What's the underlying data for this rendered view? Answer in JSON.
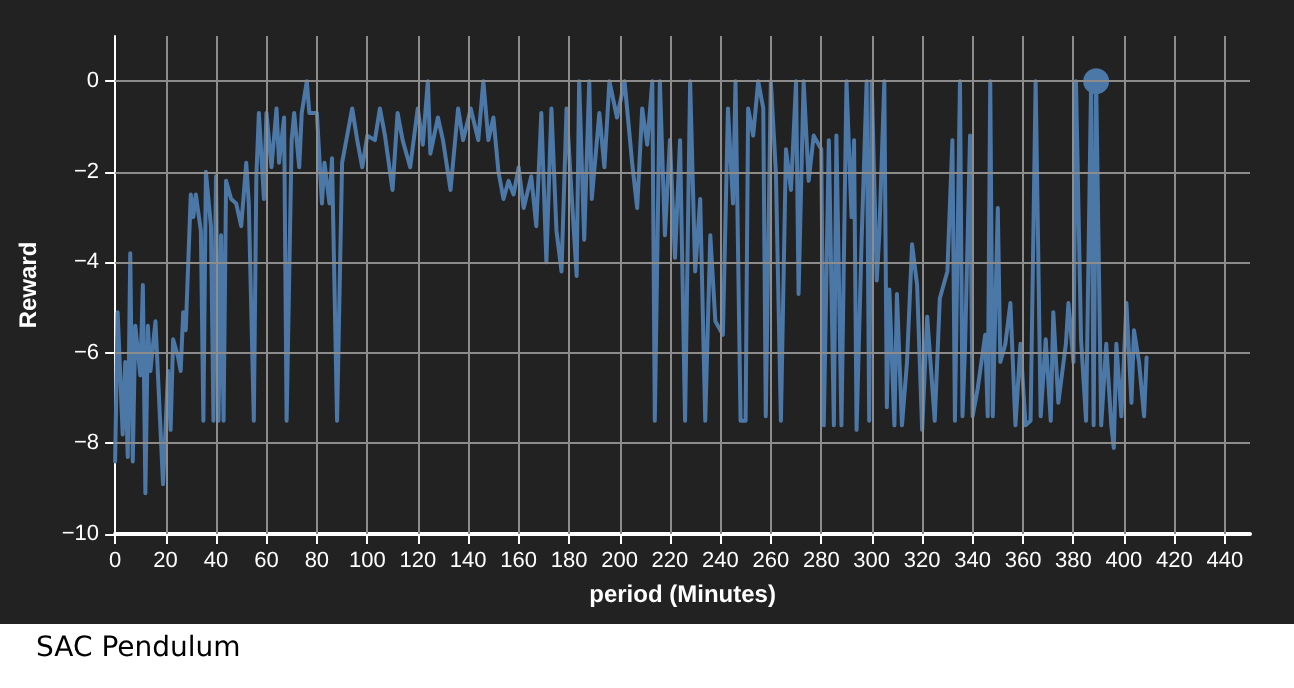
{
  "chart_data": {
    "type": "line",
    "xlabel": "period (Minutes)",
    "ylabel": "Reward",
    "annotations": [
      "SAC Pendulum"
    ],
    "xlim": [
      0,
      450
    ],
    "xticks": [
      0,
      20,
      40,
      60,
      80,
      100,
      120,
      140,
      160,
      180,
      200,
      220,
      240,
      260,
      280,
      300,
      320,
      340,
      360,
      380,
      400,
      420,
      440
    ],
    "ylim": [
      -10,
      1
    ],
    "yticks": [
      -10,
      -8,
      -6,
      -4,
      -2,
      0
    ],
    "grid": true,
    "marker": "none",
    "line_style": "solid",
    "series": [
      {
        "color": "#4c78a8",
        "x": [
          0,
          1,
          3,
          4,
          5,
          6,
          7,
          8,
          10,
          11,
          12,
          13,
          14,
          16,
          17,
          19,
          21,
          22,
          23,
          25,
          26,
          27,
          28,
          30,
          31,
          32,
          34,
          35,
          36,
          38,
          39,
          40,
          41,
          42,
          43,
          44,
          46,
          48,
          50,
          52,
          53,
          55,
          56,
          57,
          59,
          60,
          62,
          64,
          65,
          67,
          68,
          70,
          71,
          73,
          74,
          76,
          77,
          80,
          82,
          83,
          85,
          86,
          88,
          90,
          92,
          94,
          96,
          98,
          100,
          103,
          105,
          107,
          110,
          112,
          114,
          117,
          120,
          122,
          124,
          125,
          128,
          130,
          133,
          136,
          138,
          141,
          144,
          146,
          148,
          150,
          152,
          154,
          156,
          158,
          160,
          162,
          165,
          167,
          169,
          171,
          173,
          175,
          177,
          179,
          181,
          183,
          184,
          186,
          188,
          189,
          192,
          194,
          196,
          199,
          202,
          205,
          207,
          209,
          211,
          213,
          214,
          216,
          218,
          220,
          222,
          224,
          226,
          228,
          230,
          232,
          234,
          236,
          238,
          241,
          243,
          245,
          246,
          248,
          250,
          251,
          253,
          255,
          257,
          258,
          260,
          262,
          264,
          266,
          268,
          270,
          271,
          273,
          275,
          277,
          280,
          281,
          283,
          285,
          286,
          288,
          290,
          292,
          293,
          294,
          296,
          298,
          299,
          300,
          302,
          303,
          305,
          306,
          307,
          309,
          310,
          312,
          314,
          316,
          318,
          320,
          322,
          325,
          327,
          330,
          332,
          333,
          335,
          336,
          337,
          339,
          340,
          342,
          345,
          346,
          347,
          348,
          350,
          351,
          353,
          355,
          357,
          359,
          361,
          363,
          365,
          367,
          369,
          371,
          372,
          374,
          377,
          378,
          380,
          381,
          383,
          385,
          387,
          388,
          389,
          391,
          393,
          395,
          396,
          397,
          399,
          401,
          403,
          404,
          406,
          408,
          409
        ],
        "values": [
          -8.4,
          -5.1,
          -7.8,
          -6.2,
          -8.3,
          -3.8,
          -8.4,
          -5.4,
          -6.5,
          -4.5,
          -9.1,
          -5.4,
          -6.4,
          -5.3,
          -6.5,
          -8.9,
          -6.4,
          -7.7,
          -5.7,
          -6.1,
          -6.4,
          -5.1,
          -5.5,
          -2.5,
          -3,
          -2.5,
          -3.3,
          -7.5,
          -2,
          -3.2,
          -7.5,
          -2.1,
          -7.5,
          -3.4,
          -7.5,
          -2.2,
          -2.6,
          -2.7,
          -3.2,
          -1.8,
          -2.7,
          -7.5,
          -2.1,
          -0.7,
          -2.6,
          -0.7,
          -1.9,
          -0.6,
          -1.8,
          -0.8,
          -7.5,
          -1.3,
          -0.7,
          -1.9,
          -0.7,
          0,
          -0.7,
          -0.7,
          -2.7,
          -1.8,
          -2.7,
          -1.7,
          -7.5,
          -1.8,
          -1.2,
          -0.6,
          -1.3,
          -1.9,
          -1.2,
          -1.3,
          -0.6,
          -1.2,
          -2.4,
          -0.7,
          -1.3,
          -1.9,
          -0.6,
          -1.4,
          0,
          -1.6,
          -0.8,
          -1.3,
          -2.4,
          -0.6,
          -1.3,
          -0.6,
          -1.3,
          0,
          -1.3,
          -0.8,
          -2,
          -2.6,
          -2.2,
          -2.5,
          -1.9,
          -2.8,
          -2.1,
          -3.2,
          -0.7,
          -4,
          -0.6,
          -3.3,
          -4.2,
          -0.6,
          -2.5,
          -4.3,
          0,
          -3.5,
          0,
          -2.6,
          -0.7,
          -1.9,
          0,
          -0.8,
          0,
          -1.8,
          -2.8,
          -0.6,
          -1.4,
          0,
          -7.5,
          0,
          -3.4,
          -1.3,
          -3.9,
          -1.3,
          -7.5,
          0,
          -4.2,
          -2.6,
          -7.5,
          -3.4,
          -5.3,
          -5.6,
          -0.6,
          -2.7,
          0,
          -7.5,
          -7.5,
          -0.6,
          -1.2,
          0,
          -0.6,
          -7.4,
          0,
          -2,
          -7.5,
          -1.5,
          -2.4,
          0,
          -4.7,
          0,
          -2.2,
          -1.2,
          -1.5,
          -7.6,
          -1.3,
          -7.6,
          -1.2,
          -7.6,
          0,
          -3,
          -1.3,
          -7.7,
          -3.5,
          0,
          -7.5,
          0,
          -4.4,
          -3.4,
          0,
          -7.2,
          -4.6,
          -7.6,
          -4.7,
          -7.6,
          -6.2,
          -3.6,
          -4.5,
          -7.7,
          -5.2,
          -7.5,
          -4.8,
          -4.2,
          -1.3,
          -7.5,
          0,
          -7.4,
          -5.9,
          -1.2,
          -7.4,
          -6.8,
          -5.6,
          -7.4,
          0,
          -7.4,
          -2.8,
          -6.2,
          -5.8,
          -4.9,
          -7.6,
          -5.8,
          -7.6,
          -7.5,
          0,
          -7.4,
          -5.7,
          -7.5,
          -5.1,
          -7.1,
          -5.8,
          -4.9,
          -6.2,
          0,
          -5.7,
          -7.5,
          0,
          -7.6,
          0,
          -7.6,
          -5.8,
          -7.6,
          -8.1,
          -5.8,
          -7.4,
          -4.9,
          -7.1,
          -5.5,
          -6.2,
          -7.4,
          -6.1
        ]
      },
      {
        "type": "scatter",
        "color": "#4c78a8",
        "marker": "circle",
        "x": [
          389
        ],
        "values": [
          0
        ]
      }
    ]
  }
}
